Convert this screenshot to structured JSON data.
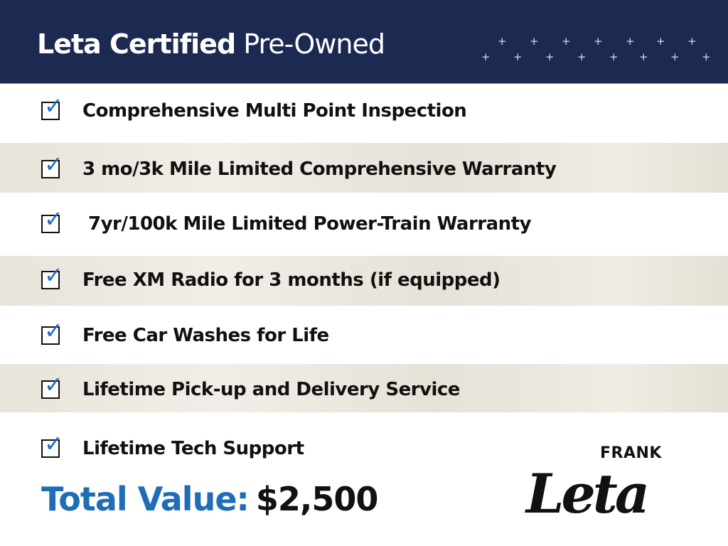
{
  "header": {
    "title_bold": "Leta Certified",
    "title_light": "Pre-Owned",
    "background_color": "#1c2951"
  },
  "items": [
    {
      "label": "Comprehensive Multi Point Inspection",
      "checked": true
    },
    {
      "label": "3 mo/3k Mile Limited Comprehensive Warranty",
      "checked": true
    },
    {
      "label": "7yr/100k Mile Limited Power-Train Warranty",
      "checked": true
    },
    {
      "label": "Free XM Radio for 3 months (if equipped)",
      "checked": true
    },
    {
      "label": "Free Car Washes for Life",
      "checked": true
    },
    {
      "label": "Lifetime Pick-up and Delivery Service",
      "checked": true
    },
    {
      "label": "Lifetime Tech Support",
      "checked": true
    }
  ],
  "check_glyph": "✓",
  "check_color": "#1f6fc4",
  "total": {
    "label": "Total Value:",
    "value": "$2,500",
    "label_color": "#1e6db5"
  },
  "logo": {
    "top": "FRANK",
    "script": "Leta"
  }
}
